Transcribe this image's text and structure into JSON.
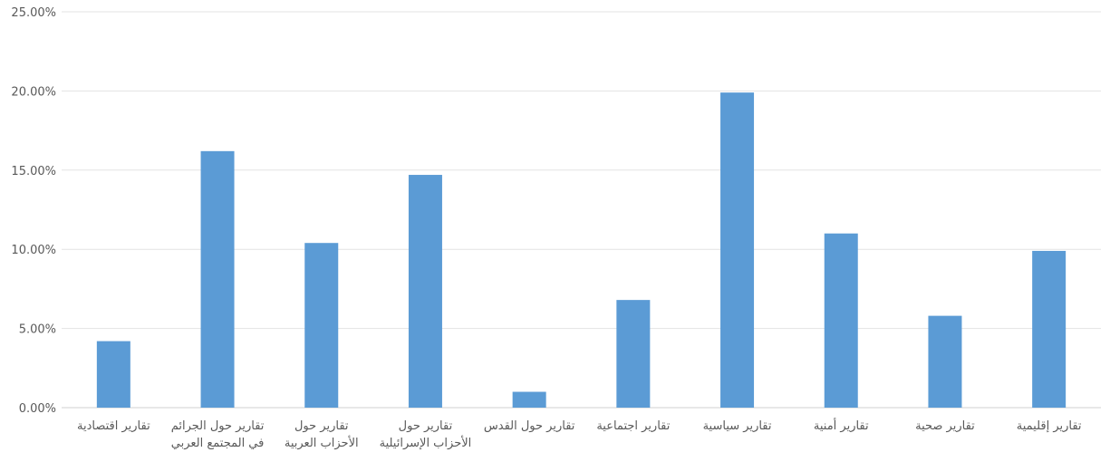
{
  "chart_data": {
    "type": "bar",
    "title": "",
    "xlabel": "",
    "ylabel": "",
    "ylim": [
      0,
      0.25
    ],
    "yticks": [
      0,
      0.05,
      0.1,
      0.15,
      0.2,
      0.25
    ],
    "ytick_labels": [
      "0.00%",
      "5.00%",
      "10.00%",
      "15.00%",
      "20.00%",
      "25.00%"
    ],
    "grid": true,
    "legend": "none",
    "bar_color": "#5b9bd5",
    "categories": [
      [
        "تقارير اقتصادية"
      ],
      [
        "تقارير حول الجرائم",
        "في المجتمع العربي"
      ],
      [
        "تقارير حول",
        "الأحزاب العربية"
      ],
      [
        "تقارير حول",
        "الأحزاب الإسرائيلية"
      ],
      [
        "تقارير حول القدس"
      ],
      [
        "تقارير اجتماعية"
      ],
      [
        "تقارير سياسية"
      ],
      [
        "تقارير أمنية"
      ],
      [
        "تقارير صحية"
      ],
      [
        "تقارير إقليمية"
      ]
    ],
    "values": [
      0.042,
      0.162,
      0.104,
      0.147,
      0.01,
      0.068,
      0.199,
      0.11,
      0.058,
      0.099
    ]
  }
}
